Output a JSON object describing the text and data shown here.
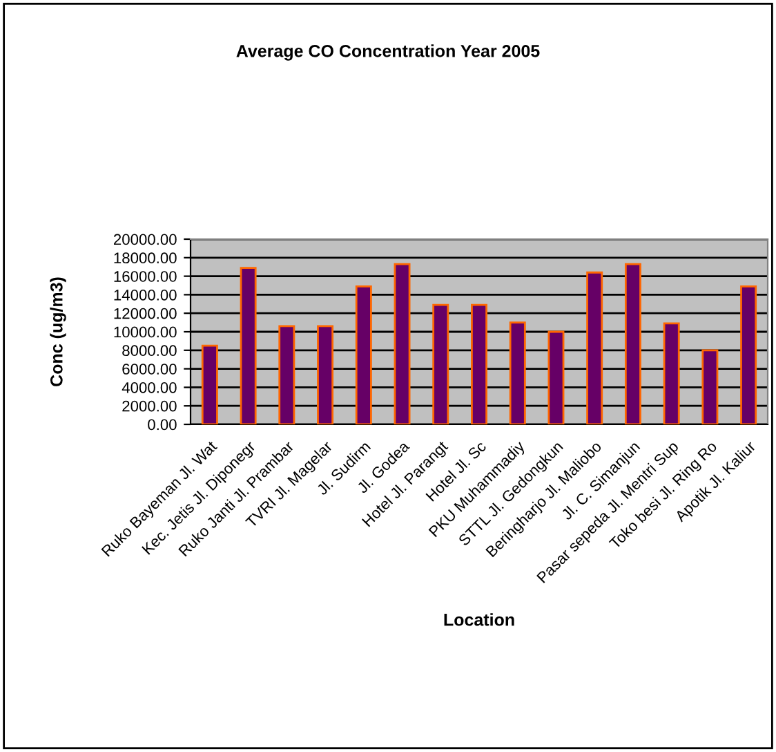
{
  "chart_data": {
    "type": "bar",
    "title": "Average CO Concentration Year 2005",
    "xlabel": "Location",
    "ylabel": "Conc (ug/m3)",
    "categories": [
      "Ruko Bayeman Jl. Wat",
      "Kec. Jetis Jl. Diponegr",
      "Ruko Janti Jl. Prambar",
      "TVRI Jl. Magelar",
      "Jl. Sudirm",
      "Jl. Godea",
      "Hotel Jl. Parangt",
      "Hotel Jl. Sc",
      "PKU Muhammadiy",
      "STTL Jl. Gedongkun",
      "Beringharjo Jl. Maliobo",
      "Jl. C. Simanjun",
      "Pasar sepeda Jl. Mentri Sup",
      "Toko besi Jl. Ring Ro",
      "Apotik Jl. Kaliur"
    ],
    "values": [
      8500,
      16900,
      10600,
      10600,
      14900,
      17300,
      12900,
      12900,
      11000,
      10000,
      16400,
      17300,
      10900,
      8000,
      14900
    ],
    "color": "#660066",
    "ylim": [
      0,
      20000
    ],
    "yticks": [
      {
        "value": 0,
        "label": "0.00"
      },
      {
        "value": 2000,
        "label": "2000.00"
      },
      {
        "value": 4000,
        "label": "4000.00"
      },
      {
        "value": 6000,
        "label": "6000.00"
      },
      {
        "value": 8000,
        "label": "8000.00"
      },
      {
        "value": 10000,
        "label": "10000.00"
      },
      {
        "value": 12000,
        "label": "12000.00"
      },
      {
        "value": 14000,
        "label": "14000.00"
      },
      {
        "value": 16000,
        "label": "16000.00"
      },
      {
        "value": 18000,
        "label": "18000.00"
      },
      {
        "value": 20000,
        "label": "20000.00"
      }
    ],
    "grid": "y"
  }
}
